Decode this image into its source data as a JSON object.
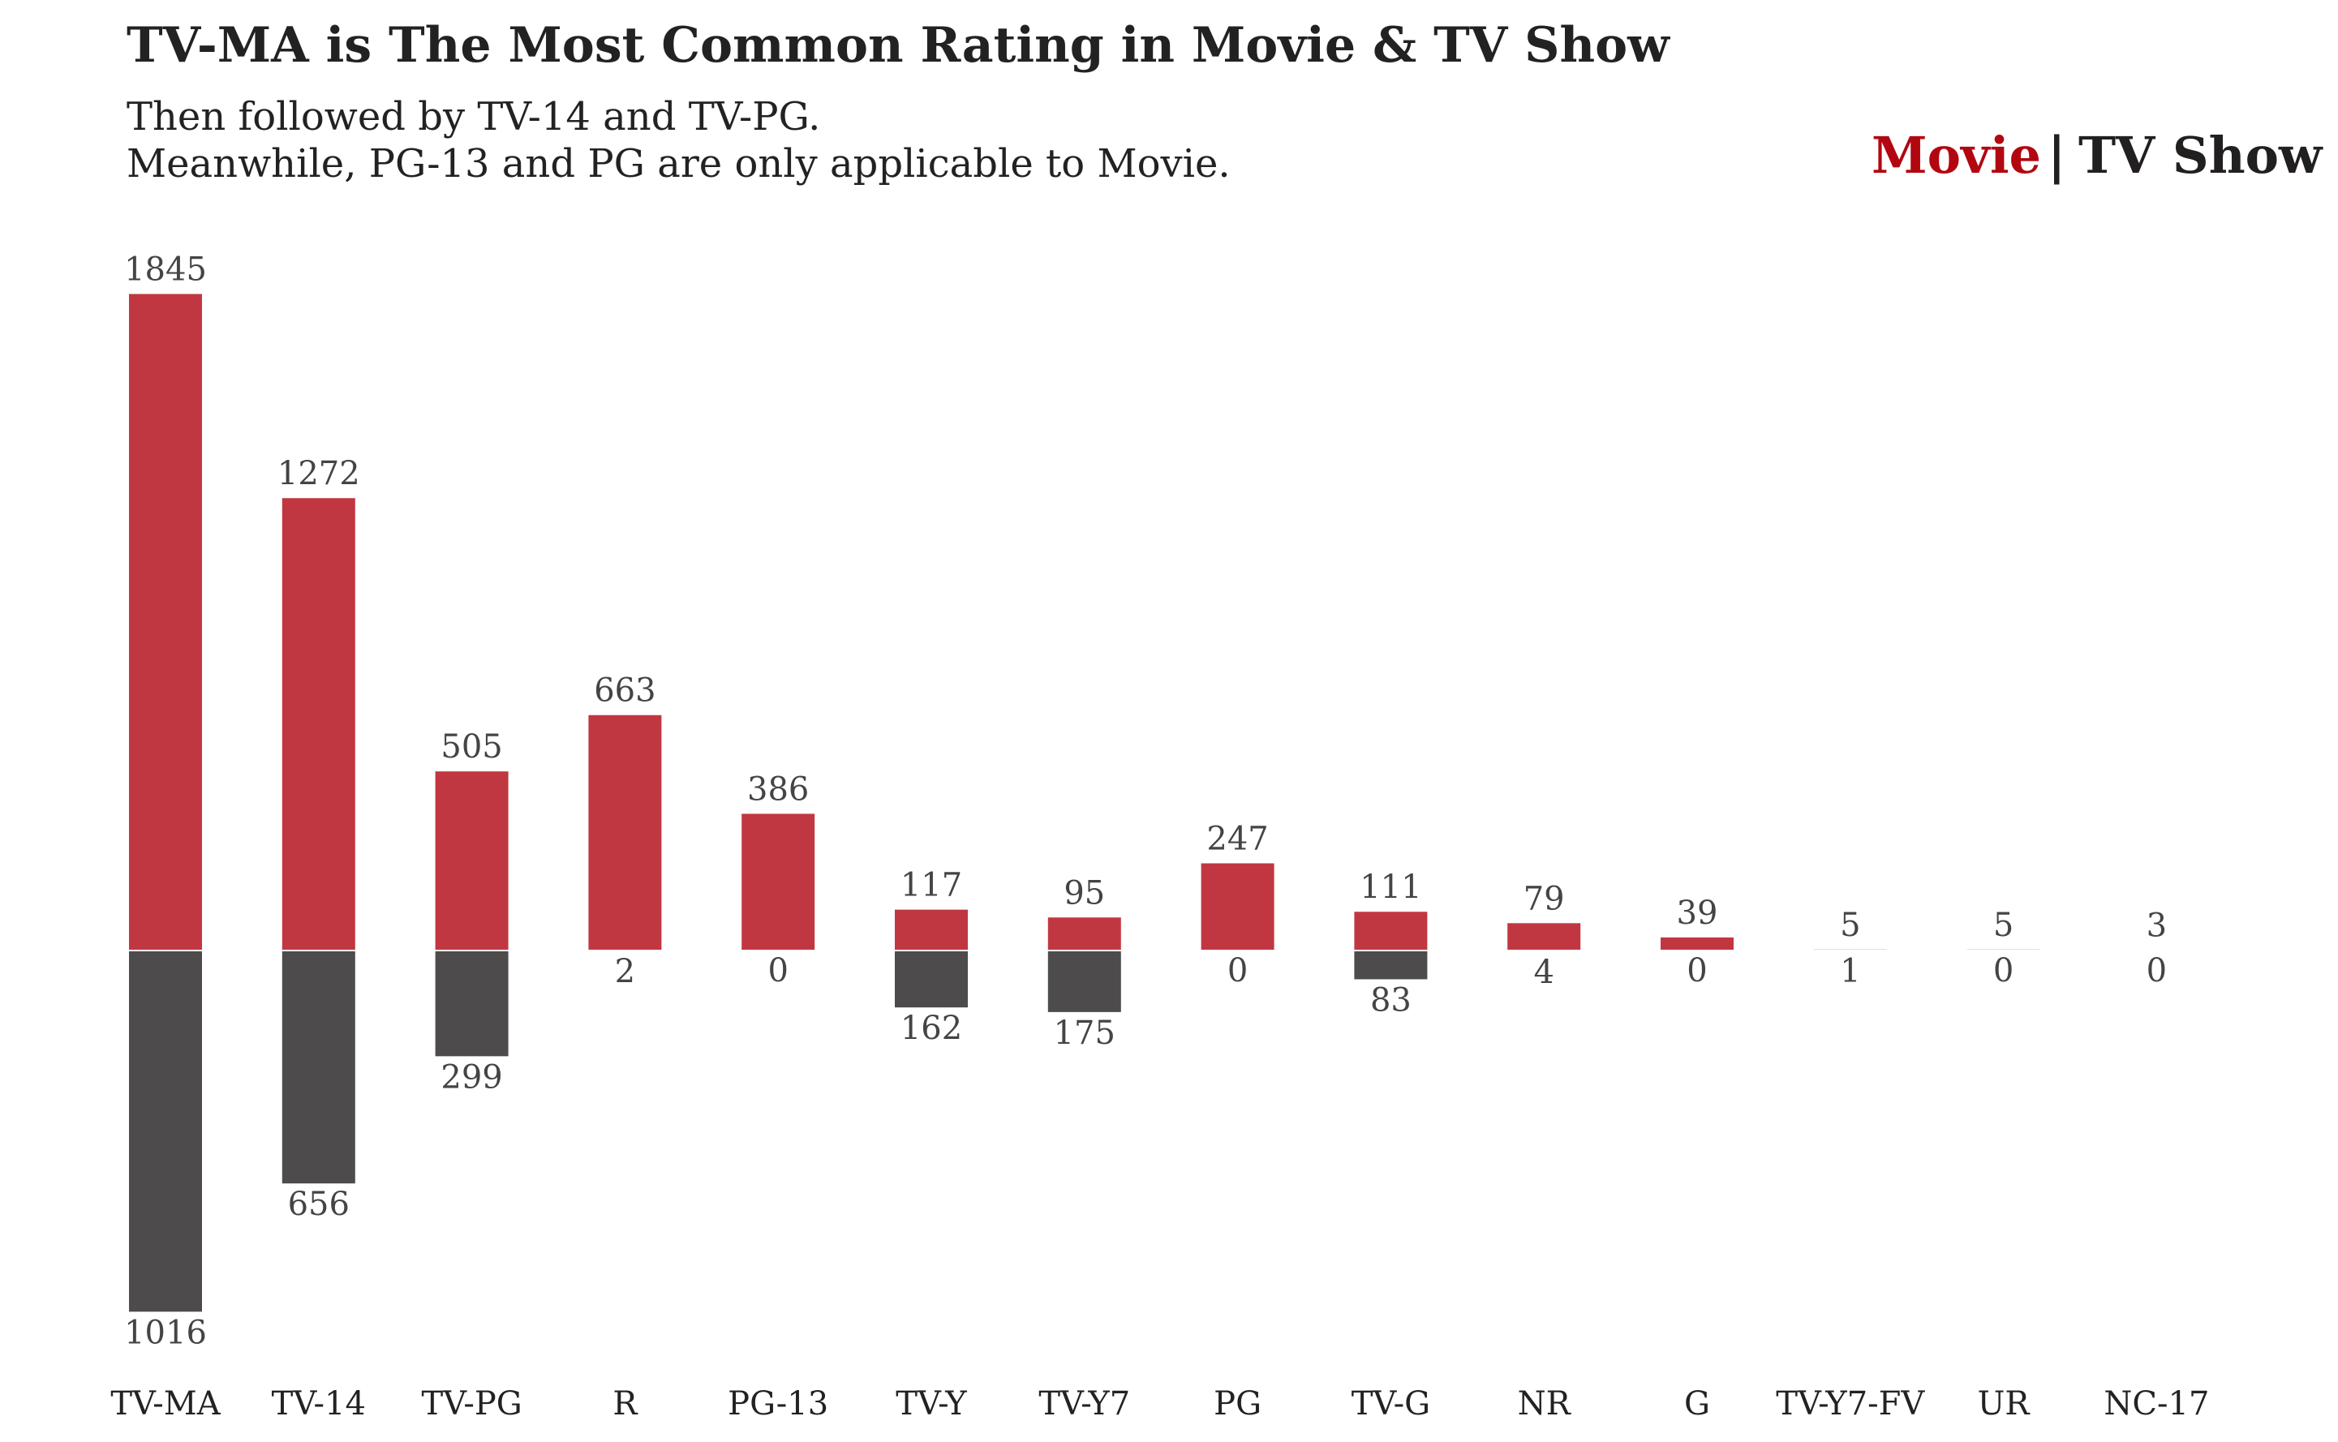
{
  "chart_data": {
    "type": "bar",
    "title": "TV-MA is The Most Common Rating in Movie & TV Show",
    "subtitle_lines": [
      "Then followed by TV-14 and TV-PG.",
      "Meanwhile, PG-13 and PG are only applicable to Movie."
    ],
    "legend": {
      "movie_label": "Movie",
      "separator": "|",
      "tv_label": "TV Show",
      "placement": "top-right"
    },
    "categories": [
      "TV-MA",
      "TV-14",
      "TV-PG",
      "R",
      "PG-13",
      "TV-Y",
      "TV-Y7",
      "PG",
      "TV-G",
      "NR",
      "G",
      "TV-Y7-FV",
      "UR",
      "NC-17"
    ],
    "series": [
      {
        "name": "Movie",
        "color": "#c13741",
        "direction": "up",
        "values": [
          1845,
          1272,
          505,
          663,
          386,
          117,
          95,
          247,
          111,
          79,
          39,
          5,
          5,
          3
        ]
      },
      {
        "name": "TV Show",
        "color": "#4d4b4b",
        "direction": "down",
        "values": [
          1016,
          656,
          299,
          2,
          0,
          162,
          175,
          0,
          83,
          4,
          0,
          1,
          0,
          0
        ]
      }
    ],
    "colors": {
      "movie": "#c13741",
      "tv": "#4d4b4b",
      "legend_movie": "#b20710",
      "legend_tv": "#221f1f"
    },
    "grid": false
  }
}
